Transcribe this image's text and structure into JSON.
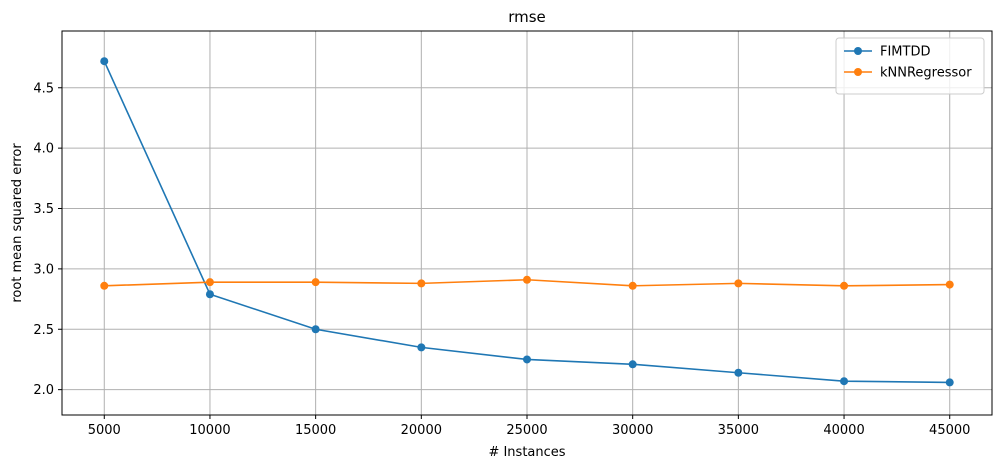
{
  "chart_data": {
    "type": "line",
    "title": "rmse",
    "xlabel": "# Instances",
    "ylabel": "root mean squared error",
    "x": [
      5000,
      10000,
      15000,
      20000,
      25000,
      30000,
      35000,
      40000,
      45000
    ],
    "xlim": [
      3000,
      47000
    ],
    "ylim": [
      1.79,
      4.97
    ],
    "xticks": [
      5000,
      10000,
      15000,
      20000,
      25000,
      30000,
      35000,
      40000,
      45000
    ],
    "yticks": [
      2.0,
      2.5,
      3.0,
      3.5,
      4.0,
      4.5
    ],
    "xtick_labels": [
      "5000",
      "10000",
      "15000",
      "20000",
      "25000",
      "30000",
      "35000",
      "40000",
      "45000"
    ],
    "ytick_labels": [
      "2.0",
      "2.5",
      "3.0",
      "3.5",
      "4.0",
      "4.5"
    ],
    "grid": true,
    "legend_position": "top-right",
    "series": [
      {
        "name": "FIMTDD",
        "color": "#1f77b4",
        "marker": "circle",
        "values": [
          4.72,
          2.79,
          2.5,
          2.35,
          2.25,
          2.21,
          2.14,
          2.07,
          2.06
        ]
      },
      {
        "name": "kNNRegressor",
        "color": "#ff7f0e",
        "marker": "circle",
        "values": [
          2.86,
          2.89,
          2.89,
          2.88,
          2.91,
          2.86,
          2.88,
          2.86,
          2.87
        ]
      }
    ]
  }
}
